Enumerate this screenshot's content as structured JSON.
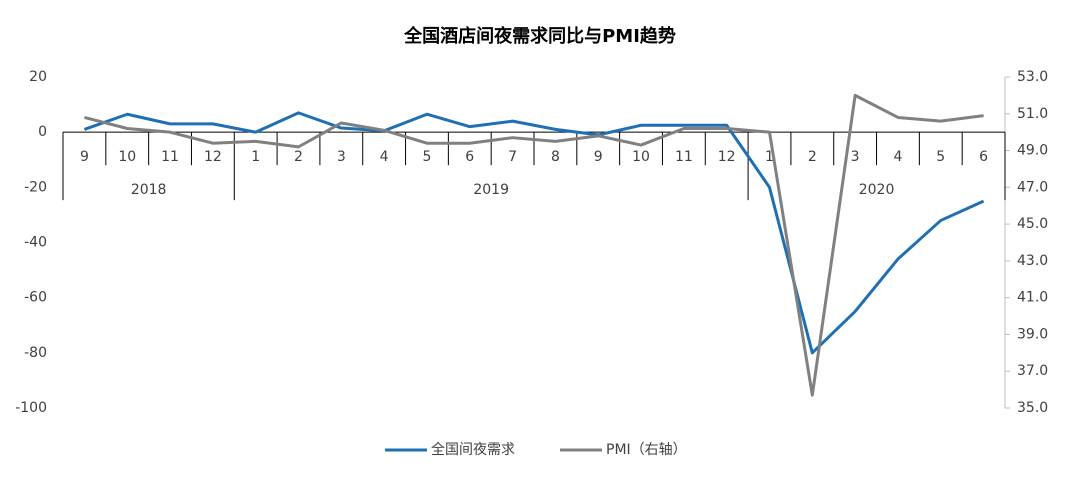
{
  "chart_data": {
    "type": "line",
    "title": "全国酒店间夜需求同比与PMI趋势",
    "categories": [
      "9",
      "10",
      "11",
      "12",
      "1",
      "2",
      "3",
      "4",
      "5",
      "6",
      "7",
      "8",
      "9",
      "10",
      "11",
      "12",
      "1",
      "2",
      "3",
      "4",
      "5",
      "6"
    ],
    "year_labels": [
      "2018",
      "2019",
      "2020"
    ],
    "series": [
      {
        "name": "全国间夜需求",
        "color": "#1f6fb5",
        "values": [
          1,
          6.5,
          3,
          3,
          0,
          7,
          1.5,
          0.5,
          6.5,
          2,
          4,
          1,
          -1,
          2.5,
          2.5,
          2.5,
          -20,
          -80,
          -65,
          -46,
          -32,
          -25
        ]
      },
      {
        "name": "PMI（右轴）",
        "color": "#808080",
        "axis": "y2",
        "values": [
          50.8,
          50.2,
          50.0,
          49.4,
          49.5,
          49.2,
          50.5,
          50.1,
          49.4,
          49.4,
          49.7,
          49.5,
          49.8,
          49.3,
          50.2,
          50.2,
          50.0,
          35.7,
          52.0,
          50.8,
          50.6,
          50.9
        ]
      }
    ],
    "ylim": [
      -100,
      20
    ],
    "yticks": [
      -100,
      -80,
      -60,
      -40,
      -20,
      0,
      20
    ],
    "y2lim": [
      35,
      53
    ],
    "y2ticks": [
      {
        "value": 35,
        "label": "35.0"
      },
      {
        "value": 37,
        "label": "37.0"
      },
      {
        "value": 39,
        "label": "39.0"
      },
      {
        "value": 41,
        "label": "41.0"
      },
      {
        "value": 43,
        "label": "43.0"
      },
      {
        "value": 45,
        "label": "45.0"
      },
      {
        "value": 47,
        "label": "47.0"
      },
      {
        "value": 49,
        "label": "49.0"
      },
      {
        "value": 51,
        "label": "51.0"
      },
      {
        "value": 53,
        "label": "53.0"
      }
    ],
    "legend": "bottom"
  }
}
